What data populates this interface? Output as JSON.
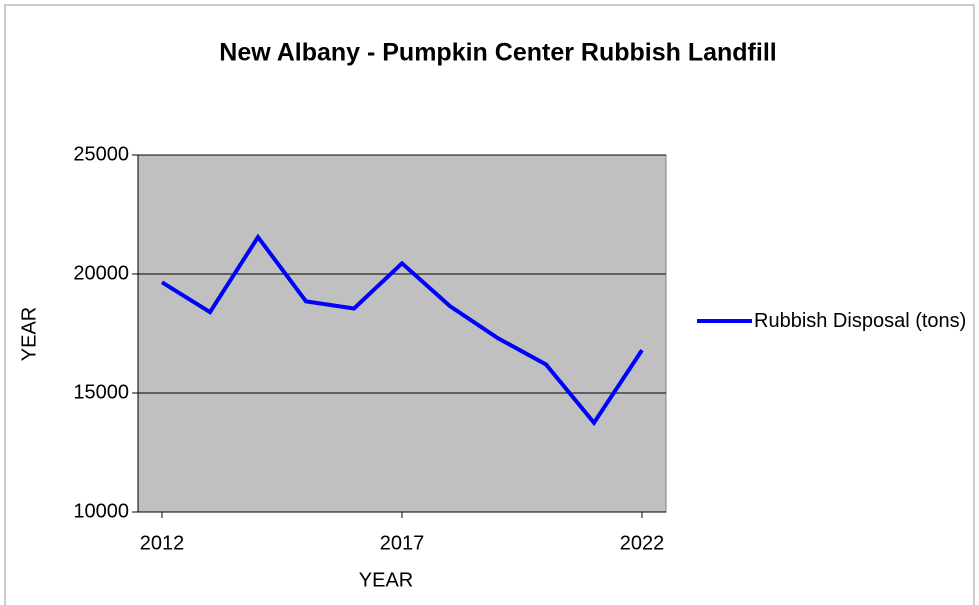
{
  "chart_data": {
    "type": "line",
    "title": "New Albany - Pumpkin Center Rubbish Landfill",
    "x_label": "YEAR",
    "y_label": "YEAR",
    "x": [
      2012,
      2013,
      2014,
      2015,
      2016,
      2017,
      2018,
      2019,
      2020,
      2021,
      2022
    ],
    "series": [
      {
        "name": "Rubbish Disposal (tons)",
        "color": "#0000ff",
        "values": [
          19650,
          18400,
          21550,
          18850,
          18550,
          20450,
          18650,
          17300,
          16200,
          13750,
          16800
        ]
      }
    ],
    "xlim": [
      2011.5,
      2022.5
    ],
    "xticks": [
      2012,
      2017,
      2022
    ],
    "ylim": [
      10000,
      25000
    ],
    "yticks": [
      10000,
      15000,
      20000,
      25000
    ],
    "grid": true,
    "legend": "right",
    "plot_background": "#c0c0c0"
  }
}
